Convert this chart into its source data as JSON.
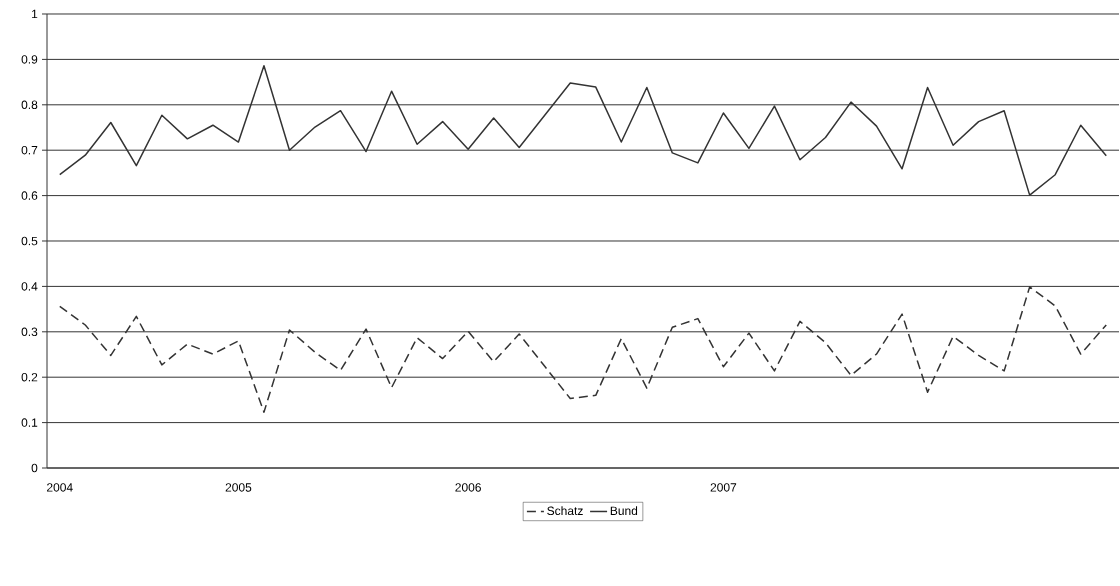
{
  "chart_data": {
    "type": "line",
    "categories": [
      "2004",
      null,
      null,
      null,
      null,
      null,
      null,
      "2005",
      null,
      null,
      null,
      null,
      null,
      null,
      null,
      null,
      "2006",
      null,
      null,
      null,
      null,
      null,
      null,
      null,
      null,
      null,
      "2007",
      null,
      null,
      null,
      null,
      null,
      null,
      null,
      null,
      null,
      null,
      null,
      null,
      null,
      null,
      null
    ],
    "series": [
      {
        "name": "Schatz",
        "color": "#333333",
        "line_style": "dashed",
        "values": [
          0.356,
          0.315,
          0.248,
          0.334,
          0.227,
          0.273,
          0.251,
          0.28,
          0.123,
          0.304,
          0.255,
          0.215,
          0.306,
          0.177,
          0.287,
          0.241,
          0.301,
          0.234,
          0.295,
          0.224,
          0.153,
          0.16,
          0.285,
          0.176,
          0.31,
          0.329,
          0.223,
          0.297,
          0.214,
          0.323,
          0.276,
          0.204,
          0.251,
          0.339,
          0.167,
          0.29,
          0.248,
          0.214,
          0.399,
          0.357,
          0.251,
          0.315
        ]
      },
      {
        "name": "Bund",
        "color": "#333333",
        "line_style": "solid",
        "values": [
          0.646,
          0.689,
          0.761,
          0.666,
          0.777,
          0.725,
          0.755,
          0.718,
          0.886,
          0.7,
          0.751,
          0.787,
          0.697,
          0.83,
          0.713,
          0.763,
          0.702,
          0.771,
          0.706,
          0.777,
          0.848,
          0.839,
          0.718,
          0.838,
          0.694,
          0.672,
          0.782,
          0.704,
          0.797,
          0.679,
          0.728,
          0.806,
          0.753,
          0.659,
          0.838,
          0.711,
          0.763,
          0.787,
          0.601,
          0.646,
          0.755,
          0.688
        ]
      }
    ],
    "ylim": [
      0,
      1
    ],
    "yticks": [
      0,
      0.1,
      0.2,
      0.3,
      0.4,
      0.5,
      0.6,
      0.7,
      0.8,
      0.9,
      1
    ],
    "grid": "y",
    "legend": "bottom",
    "marker": "none"
  }
}
